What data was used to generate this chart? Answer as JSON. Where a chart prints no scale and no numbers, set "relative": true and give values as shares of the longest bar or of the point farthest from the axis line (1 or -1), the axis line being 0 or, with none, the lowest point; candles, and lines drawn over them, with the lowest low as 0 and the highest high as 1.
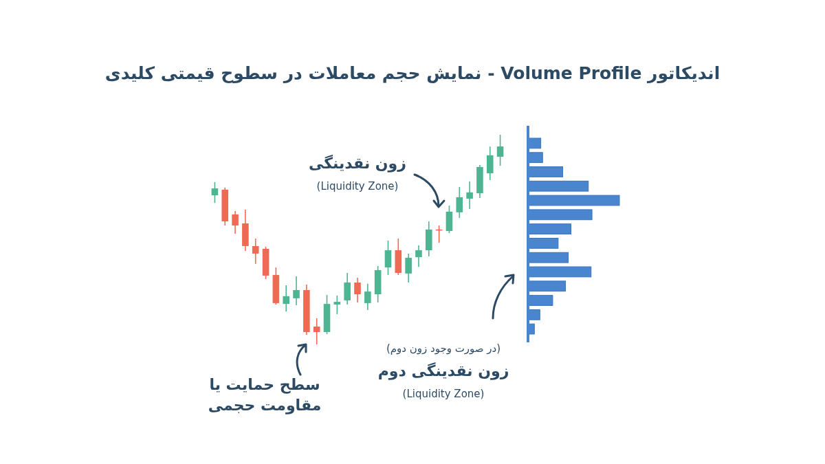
{
  "chart_data": [
    {
      "type": "candlestick",
      "title": "اندیکاتور Volume Profile - نمایش حجم معاملات در سطوح قیمتی کلیدی",
      "relative": true,
      "categories": [
        null,
        null,
        null,
        null,
        null,
        null,
        null,
        null,
        null,
        null,
        null,
        null,
        null,
        null,
        null,
        null,
        null,
        null,
        null,
        null,
        null,
        null,
        null,
        null,
        null,
        null,
        null,
        null,
        null
      ],
      "ohlc": [
        [
          0.711,
          0.774,
          0.675,
          0.744
        ],
        [
          0.738,
          0.748,
          0.567,
          0.587
        ],
        [
          0.62,
          0.636,
          0.528,
          0.567
        ],
        [
          0.577,
          0.643,
          0.446,
          0.469
        ],
        [
          0.469,
          0.505,
          0.384,
          0.433
        ],
        [
          0.456,
          0.466,
          0.311,
          0.328
        ],
        [
          0.331,
          0.367,
          0.19,
          0.197
        ],
        [
          0.193,
          0.282,
          0.157,
          0.23
        ],
        [
          0.22,
          0.325,
          0.187,
          0.259
        ],
        [
          0.259,
          0.285,
          0.046,
          0.059
        ],
        [
          0.085,
          0.125,
          0.0,
          0.059
        ],
        [
          0.059,
          0.236,
          0.049,
          0.193
        ],
        [
          0.19,
          0.233,
          0.144,
          0.203
        ],
        [
          0.21,
          0.341,
          0.19,
          0.295
        ],
        [
          0.295,
          0.318,
          0.2,
          0.239
        ],
        [
          0.197,
          0.289,
          0.164,
          0.252
        ],
        [
          0.239,
          0.374,
          0.2,
          0.354
        ],
        [
          0.367,
          0.495,
          0.331,
          0.449
        ],
        [
          0.449,
          0.505,
          0.331,
          0.341
        ],
        [
          0.338,
          0.433,
          0.295,
          0.413
        ],
        [
          0.416,
          0.472,
          0.37,
          0.449
        ],
        [
          0.449,
          0.587,
          0.42,
          0.548
        ],
        [
          0.548,
          0.567,
          0.485,
          0.544
        ],
        [
          0.541,
          0.662,
          0.531,
          0.633
        ],
        [
          0.63,
          0.751,
          0.603,
          0.702
        ],
        [
          0.695,
          0.777,
          0.646,
          0.725
        ],
        [
          0.721,
          0.856,
          0.698,
          0.846
        ],
        [
          0.816,
          0.944,
          0.784,
          0.902
        ],
        [
          0.895,
          1.0,
          0.852,
          0.944
        ]
      ],
      "colors": [
        "#4db592",
        "#ef6a55",
        "#ef6a55",
        "#ef6a55",
        "#ef6a55",
        "#ef6a55",
        "#ef6a55",
        "#4db592",
        "#4db592",
        "#ef6a55",
        "#ef6a55",
        "#4db592",
        "#4db592",
        "#4db592",
        "#ef6a55",
        "#4db592",
        "#4db592",
        "#4db592",
        "#ef6a55",
        "#4db592",
        "#4db592",
        "#4db592",
        "#ef6a55",
        "#4db592",
        "#4db592",
        "#4db592",
        "#4db592",
        "#4db592",
        "#4db592"
      ],
      "annotations": [
        "زون نقدینگی",
        "(Liquidity Zone)",
        "سطح حمایت یا مقاومت حجمی"
      ]
    },
    {
      "type": "bar",
      "orientation": "horizontal",
      "relative": true,
      "color": "#4a86cf",
      "categories": [
        null,
        null,
        null,
        null,
        null,
        null,
        null,
        null,
        null,
        null,
        null,
        null,
        null,
        null
      ],
      "values": [
        0.14,
        0.16,
        0.38,
        0.66,
        1.0,
        0.7,
        0.47,
        0.33,
        0.44,
        0.69,
        0.41,
        0.27,
        0.13,
        0.07
      ],
      "annotations": [
        "(در صورت وجود زون دوم)",
        "زون نقدینگی دوم",
        "(Liquidity Zone)"
      ]
    }
  ]
}
